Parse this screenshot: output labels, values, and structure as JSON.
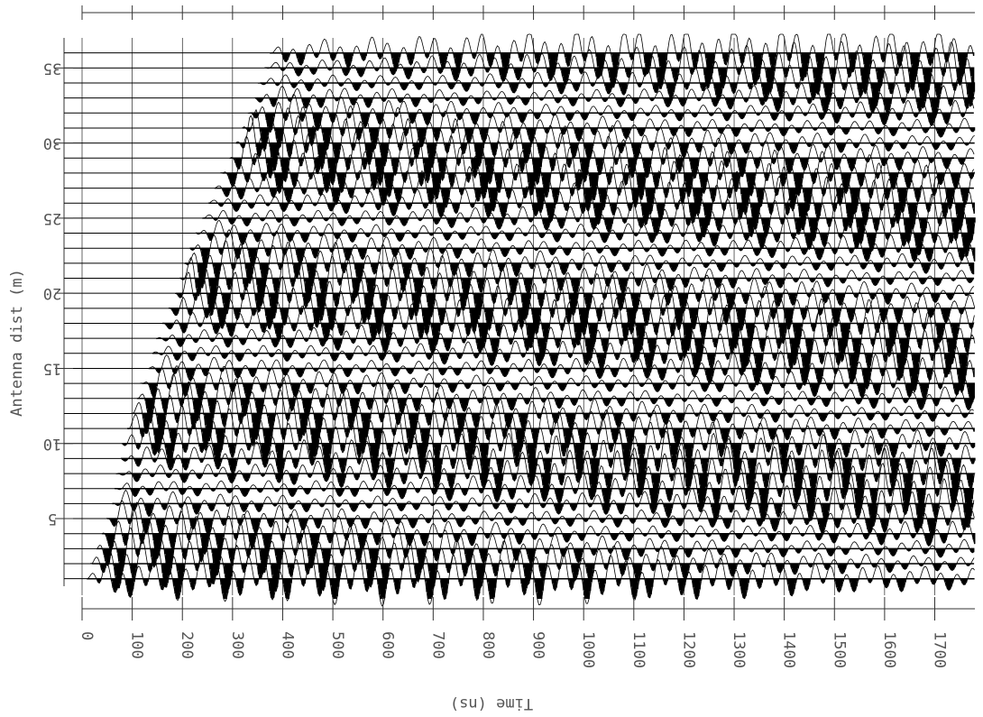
{
  "chart_data": {
    "type": "wiggle",
    "x_label": "Time (ns)",
    "y_label": "Antenna dist (m)",
    "xlim": [
      0,
      1780
    ],
    "xticks": [
      0,
      100,
      200,
      300,
      400,
      500,
      600,
      700,
      800,
      900,
      1000,
      1100,
      1200,
      1300,
      1400,
      1500,
      1600,
      1700
    ],
    "ylim": [
      -0.1,
      37
    ],
    "yticks": [
      5,
      10,
      15,
      20,
      25,
      30,
      35
    ],
    "offsets": [
      1,
      2,
      3,
      4,
      5,
      6,
      7,
      8,
      9,
      10,
      11,
      12,
      13,
      14,
      15,
      16,
      17,
      18,
      19,
      20,
      21,
      22,
      23,
      24,
      25,
      26,
      27,
      28,
      29,
      30,
      31,
      32,
      33,
      34,
      35,
      36
    ],
    "first_break": [
      10,
      20,
      30,
      40,
      50,
      60,
      65,
      72,
      78,
      80,
      90,
      100,
      110,
      120,
      133,
      140,
      150,
      160,
      175,
      187,
      195,
      205,
      215,
      228,
      240,
      252,
      265,
      280,
      295,
      307,
      320,
      335,
      345,
      355,
      367,
      375
    ],
    "color": "#000000"
  }
}
